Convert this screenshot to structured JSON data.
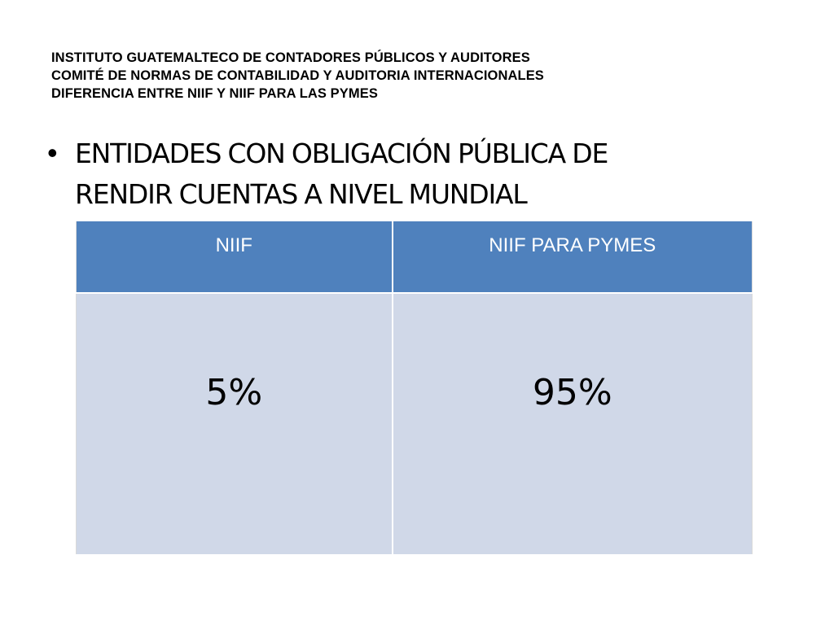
{
  "header": {
    "lines": [
      "INSTITUTO GUATEMALTECO DE CONTADORES PÚBLICOS Y AUDITORES",
      "COMITÉ DE NORMAS DE CONTABILIDAD Y AUDITORIA INTERNACIONALES",
      "DIFERENCIA ENTRE NIIF Y NIIF PARA LAS PYMES"
    ]
  },
  "bullet": {
    "symbol": "•",
    "lines": [
      "ENTIDADES CON OBLIGACIÓN PÚBLICA DE",
      "RENDIR CUENTAS A NIVEL MUNDIAL"
    ]
  },
  "table": {
    "columns": [
      "NIIF",
      "NIIF PARA PYMES"
    ],
    "rows": [
      [
        "5%",
        "95%"
      ]
    ]
  },
  "colors": {
    "header_fill": "#4f81bd",
    "body_fill": "#d0d8e8"
  }
}
